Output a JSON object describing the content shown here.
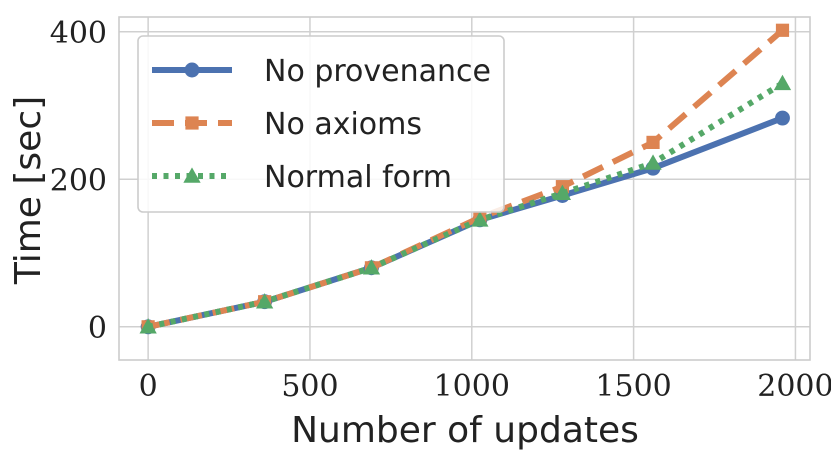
{
  "chart_data": {
    "type": "line",
    "xlabel": "Number of updates",
    "ylabel": "Time [sec]",
    "xlim": [
      -90,
      2045
    ],
    "ylim": [
      -45,
      420
    ],
    "xticks": [
      0,
      500,
      1000,
      1500,
      2000
    ],
    "yticks": [
      0,
      200,
      400
    ],
    "grid": true,
    "legend_position": "top-left",
    "series": [
      {
        "name": "No provenance",
        "color": "#4c72b0",
        "line_style": "solid",
        "marker": "circle",
        "x": [
          0,
          360,
          690,
          1025,
          1280,
          1560,
          1960
        ],
        "y": [
          0,
          34,
          80,
          145,
          178,
          215,
          283
        ]
      },
      {
        "name": "No axioms",
        "color": "#dd8452",
        "line_style": "dashed",
        "marker": "square",
        "x": [
          0,
          360,
          690,
          1025,
          1280,
          1560,
          1960
        ],
        "y": [
          0,
          34,
          80,
          148,
          190,
          250,
          402
        ]
      },
      {
        "name": "Normal form",
        "color": "#55a868",
        "line_style": "dotted",
        "marker": "triangle",
        "x": [
          0,
          360,
          690,
          1025,
          1280,
          1560,
          1960
        ],
        "y": [
          0,
          34,
          80,
          145,
          181,
          222,
          330
        ]
      }
    ]
  }
}
